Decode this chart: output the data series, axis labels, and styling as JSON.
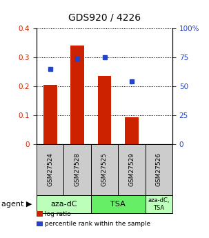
{
  "title": "GDS920 / 4226",
  "samples": [
    "GSM27524",
    "GSM27528",
    "GSM27525",
    "GSM27529",
    "GSM27526"
  ],
  "log_ratios": [
    0.205,
    0.34,
    0.235,
    0.093,
    0.0
  ],
  "percentile_ranks": [
    65.0,
    74.0,
    75.0,
    54.0,
    null
  ],
  "bar_color": "#cc2200",
  "dot_color": "#2244cc",
  "ylim_left": [
    0,
    0.4
  ],
  "ylim_right": [
    0,
    100
  ],
  "yticks_left": [
    0,
    0.1,
    0.2,
    0.3,
    0.4
  ],
  "yticks_right": [
    0,
    25,
    50,
    75,
    100
  ],
  "ytick_labels_left": [
    "0",
    "0.1",
    "0.2",
    "0.3",
    "0.4"
  ],
  "ytick_labels_right": [
    "0",
    "25",
    "50",
    "75",
    "100%"
  ],
  "groups": [
    {
      "label": "aza-dC",
      "start": 0,
      "end": 2,
      "color": "#bbffbb"
    },
    {
      "label": "TSA",
      "start": 2,
      "end": 4,
      "color": "#66ee66"
    },
    {
      "label": "aza-dC,\nTSA",
      "start": 4,
      "end": 5,
      "color": "#bbffbb"
    }
  ],
  "legend_items": [
    {
      "color": "#cc2200",
      "label": "log ratio"
    },
    {
      "color": "#2244cc",
      "label": "percentile rank within the sample"
    }
  ],
  "bar_width": 0.5,
  "tick_color_left": "#cc2200",
  "tick_color_right": "#2244cc",
  "sample_box_color": "#cccccc",
  "title_fontsize": 10,
  "tick_fontsize": 7.5,
  "sample_fontsize": 6.5,
  "group_fontsize": 8,
  "group_fontsize_small": 6,
  "legend_fontsize": 6.5,
  "agent_fontsize": 8
}
